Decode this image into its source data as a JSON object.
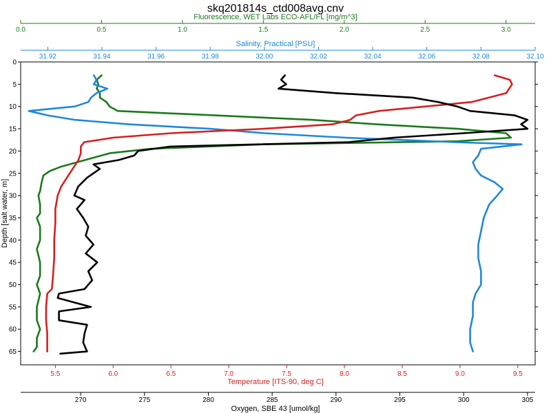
{
  "chart_data": {
    "type": "line",
    "title": "skq201814s_ctd008avg.cnv",
    "y_axis": {
      "label": "Depth [salt water, m]",
      "range": [
        0,
        68
      ],
      "reversed": true,
      "ticks": [
        0,
        5,
        10,
        15,
        20,
        25,
        30,
        35,
        40,
        45,
        50,
        55,
        60,
        65
      ],
      "color": "#000000"
    },
    "x_axes": [
      {
        "id": "fluorescence",
        "label": "Fluorescence, WET Labs ECO-AFL/FL [mg/m^3]",
        "position": "top",
        "color": "#1a7a1a",
        "range": [
          0,
          3.18
        ],
        "ticks": [
          0.0,
          0.5,
          1.0,
          1.5,
          2.0,
          2.5,
          3.0
        ],
        "tick_labels": [
          "0.0",
          "0.5",
          "1.0",
          "1.5",
          "2.0",
          "2.5",
          "3.0"
        ]
      },
      {
        "id": "salinity",
        "label": "Salinity, Practical [PSU]",
        "position": "top",
        "color": "#1e88d8",
        "range": [
          31.91,
          32.1
        ],
        "ticks": [
          31.92,
          31.94,
          31.96,
          31.98,
          32.0,
          32.02,
          32.04,
          32.06,
          32.08,
          32.1
        ],
        "tick_labels": [
          "31.92",
          "31.94",
          "31.96",
          "31.98",
          "32.00",
          "32.02",
          "32.04",
          "32.06",
          "32.08",
          "32.10"
        ]
      },
      {
        "id": "temperature",
        "label": "Temperature [ITS-90, deg C]",
        "position": "bottom",
        "color": "#d42020",
        "range": [
          5.2,
          9.65
        ],
        "ticks": [
          5.5,
          6.0,
          6.5,
          7.0,
          7.5,
          8.0,
          8.5,
          9.0,
          9.5
        ],
        "tick_labels": [
          "5.5",
          "6.0",
          "6.5",
          "7.0",
          "7.5",
          "8.0",
          "8.5",
          "9.0",
          "9.5"
        ]
      },
      {
        "id": "oxygen",
        "label": "Oxygen, SBE 43 [umol/kg]",
        "position": "bottom",
        "color": "#000000",
        "range": [
          265.3,
          305.6
        ],
        "ticks": [
          270,
          275,
          280,
          285,
          290,
          295,
          300,
          305
        ],
        "tick_labels": [
          "270",
          "275",
          "280",
          "285",
          "290",
          "295",
          "300",
          "305"
        ]
      }
    ],
    "series": [
      {
        "axis": "fluorescence",
        "color": "#1a7a1a",
        "points": [
          [
            0.5,
            3
          ],
          [
            0.47,
            4
          ],
          [
            0.48,
            5
          ],
          [
            0.47,
            6
          ],
          [
            0.49,
            7
          ],
          [
            0.49,
            8
          ],
          [
            0.53,
            9
          ],
          [
            0.55,
            10
          ],
          [
            0.6,
            11
          ],
          [
            1.2,
            12
          ],
          [
            1.8,
            13
          ],
          [
            2.2,
            14
          ],
          [
            2.7,
            15
          ],
          [
            3.0,
            16
          ],
          [
            3.03,
            17
          ],
          [
            2.7,
            17.8
          ],
          [
            1.5,
            18.5
          ],
          [
            0.8,
            19.5
          ],
          [
            0.55,
            20.5
          ],
          [
            0.45,
            21.5
          ],
          [
            0.35,
            22.5
          ],
          [
            0.25,
            23.5
          ],
          [
            0.18,
            24.5
          ],
          [
            0.14,
            25.5
          ],
          [
            0.13,
            27
          ],
          [
            0.12,
            29
          ],
          [
            0.11,
            30
          ],
          [
            0.12,
            32
          ],
          [
            0.12,
            34
          ],
          [
            0.1,
            35
          ],
          [
            0.12,
            37
          ],
          [
            0.12,
            40
          ],
          [
            0.1,
            42
          ],
          [
            0.12,
            45
          ],
          [
            0.12,
            48
          ],
          [
            0.1,
            50
          ],
          [
            0.12,
            52
          ],
          [
            0.1,
            55
          ],
          [
            0.1,
            58
          ],
          [
            0.12,
            60
          ],
          [
            0.1,
            62
          ],
          [
            0.1,
            64
          ],
          [
            0.08,
            65
          ]
        ]
      },
      {
        "axis": "salinity",
        "color": "#1e88d8",
        "points": [
          [
            31.937,
            3
          ],
          [
            31.938,
            4
          ],
          [
            31.937,
            5
          ],
          [
            31.942,
            6
          ],
          [
            31.938,
            7
          ],
          [
            31.936,
            8
          ],
          [
            31.935,
            9
          ],
          [
            31.93,
            10
          ],
          [
            31.913,
            11
          ],
          [
            31.92,
            12
          ],
          [
            31.93,
            13
          ],
          [
            31.95,
            14
          ],
          [
            31.98,
            15
          ],
          [
            32.0,
            16
          ],
          [
            32.03,
            17
          ],
          [
            32.05,
            17.5
          ],
          [
            32.07,
            18
          ],
          [
            32.095,
            18.5
          ],
          [
            32.08,
            19.5
          ],
          [
            32.079,
            21
          ],
          [
            32.077,
            22.5
          ],
          [
            32.078,
            24
          ],
          [
            32.08,
            25.5
          ],
          [
            32.085,
            27
          ],
          [
            32.088,
            28.5
          ],
          [
            32.086,
            30
          ],
          [
            32.083,
            32
          ],
          [
            32.081,
            35
          ],
          [
            32.08,
            38
          ],
          [
            32.079,
            41
          ],
          [
            32.079,
            44
          ],
          [
            32.08,
            47
          ],
          [
            32.08,
            50
          ],
          [
            32.078,
            52
          ],
          [
            32.077,
            54
          ],
          [
            32.077,
            57
          ],
          [
            32.076,
            60
          ],
          [
            32.076,
            63
          ],
          [
            32.077,
            65
          ]
        ]
      },
      {
        "axis": "temperature",
        "color": "#d42020",
        "points": [
          [
            9.3,
            3
          ],
          [
            9.43,
            4
          ],
          [
            9.45,
            5
          ],
          [
            9.4,
            7
          ],
          [
            9.1,
            9
          ],
          [
            8.7,
            10
          ],
          [
            8.3,
            11
          ],
          [
            8.1,
            12
          ],
          [
            8.05,
            13
          ],
          [
            7.9,
            14
          ],
          [
            7.3,
            15
          ],
          [
            6.5,
            16
          ],
          [
            6.0,
            17
          ],
          [
            5.75,
            18
          ],
          [
            5.72,
            19
          ],
          [
            5.72,
            20.5
          ],
          [
            5.7,
            22
          ],
          [
            5.65,
            24
          ],
          [
            5.6,
            26
          ],
          [
            5.55,
            28
          ],
          [
            5.52,
            30
          ],
          [
            5.5,
            33
          ],
          [
            5.5,
            36
          ],
          [
            5.49,
            40
          ],
          [
            5.49,
            44
          ],
          [
            5.48,
            48
          ],
          [
            5.47,
            51
          ],
          [
            5.43,
            52
          ],
          [
            5.42,
            55
          ],
          [
            5.42,
            58
          ],
          [
            5.43,
            61
          ],
          [
            5.43,
            65
          ]
        ]
      },
      {
        "axis": "oxygen",
        "color": "#000000",
        "points": [
          [
            286,
            3
          ],
          [
            285.7,
            4
          ],
          [
            286.1,
            5
          ],
          [
            285.5,
            6
          ],
          [
            290,
            7
          ],
          [
            296,
            8
          ],
          [
            298,
            9
          ],
          [
            299.5,
            10
          ],
          [
            300.5,
            11
          ],
          [
            304,
            12
          ],
          [
            305,
            13
          ],
          [
            304.5,
            14
          ],
          [
            305,
            15
          ],
          [
            300,
            16
          ],
          [
            294.5,
            17
          ],
          [
            291,
            18
          ],
          [
            277,
            19
          ],
          [
            274.5,
            20
          ],
          [
            274.2,
            21
          ],
          [
            273,
            22
          ],
          [
            271,
            23
          ],
          [
            271.5,
            24
          ],
          [
            270.5,
            26
          ],
          [
            269.8,
            28
          ],
          [
            269.5,
            30
          ],
          [
            270.3,
            31
          ],
          [
            269.7,
            33
          ],
          [
            270.2,
            35
          ],
          [
            270.6,
            37
          ],
          [
            270.4,
            39
          ],
          [
            271,
            41
          ],
          [
            270.4,
            43
          ],
          [
            271.3,
            45
          ],
          [
            270.6,
            47
          ],
          [
            270.9,
            49
          ],
          [
            270.3,
            51
          ],
          [
            268.3,
            52
          ],
          [
            268.2,
            53
          ],
          [
            270.8,
            55
          ],
          [
            268.3,
            56
          ],
          [
            268.3,
            58
          ],
          [
            270.5,
            59
          ],
          [
            270.3,
            61
          ],
          [
            270.2,
            63
          ],
          [
            270.5,
            65
          ],
          [
            268.4,
            65.5
          ]
        ]
      }
    ]
  }
}
